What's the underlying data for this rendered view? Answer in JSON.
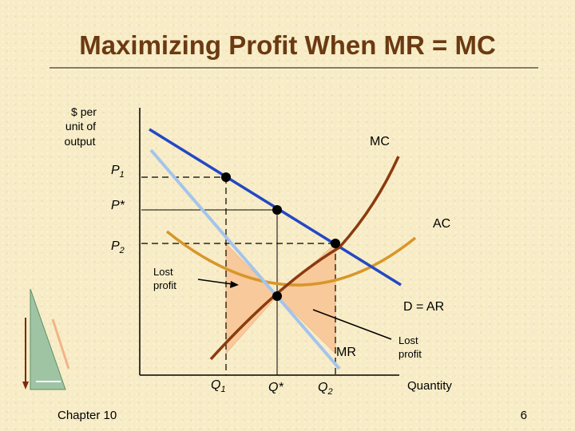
{
  "slide": {
    "title": "Maximizing Profit When MR = MC",
    "chapter": "Chapter 10",
    "page_number": "6"
  },
  "diagram": {
    "y_axis_label": [
      "$ per",
      "unit of",
      "output"
    ],
    "x_axis_label": "Quantity",
    "curves": {
      "mc": "MC",
      "ac": "AC",
      "demand": "D = AR",
      "mr": "MR"
    },
    "price_labels": {
      "p1": "P",
      "p1_sub": "1",
      "pstar": "P*",
      "p2": "P",
      "p2_sub": "2"
    },
    "quantity_labels": {
      "q1": "Q",
      "q1_sub": "1",
      "qstar": "Q*",
      "q2": "Q",
      "q2_sub": "2"
    },
    "annotations": {
      "lost_profit_left": [
        "Lost",
        "profit"
      ],
      "lost_profit_right": [
        "Lost",
        "profit"
      ]
    },
    "colors": {
      "mc": "#8b3a0e",
      "ac": "#d8962a",
      "demand": "#2448c4",
      "mr": "#a4c4ec",
      "shading": "#f8c99a",
      "dashed": "#000000"
    }
  }
}
